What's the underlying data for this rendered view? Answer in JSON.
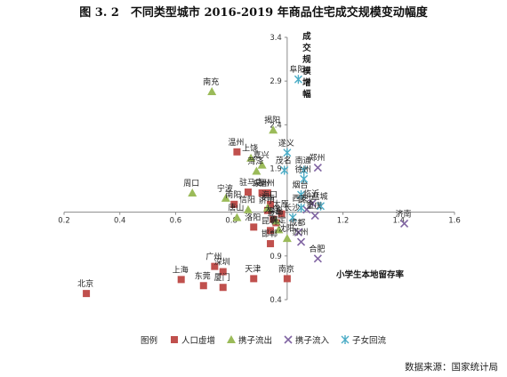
{
  "chart_data": {
    "type": "scatter",
    "title": "图 3. 2　不同类型城市 2016-2019 年商品住宅成交规模变动幅度",
    "xlabel": "小学生本地留存率",
    "ylabel": "成交规模增幅",
    "xlim": [
      0.2,
      1.6
    ],
    "ylim": [
      0.4,
      3.4
    ],
    "x_ticks": [
      "0.2",
      "0.4",
      "0.6",
      "0.8",
      "1",
      "1.2",
      "1.4",
      "1.6"
    ],
    "y_ticks": [
      "0.4",
      "0.9",
      "1.4",
      "1.9",
      "2.4",
      "2.9",
      "3.4"
    ],
    "x_cross": 1.0,
    "y_cross": 1.4,
    "grid": false,
    "legend_position": "bottom",
    "legend_title": "图例",
    "source": "数据来源：国家统计局",
    "series": [
      {
        "name": "人口虚增",
        "color": "#c0504d",
        "marker": "square",
        "points": [
          {
            "label": "北京",
            "x": 0.28,
            "y": 0.47
          },
          {
            "label": "上海",
            "x": 0.62,
            "y": 0.63
          },
          {
            "label": "东莞",
            "x": 0.7,
            "y": 0.56
          },
          {
            "label": "厦门",
            "x": 0.77,
            "y": 0.54
          },
          {
            "label": "深圳",
            "x": 0.77,
            "y": 0.72
          },
          {
            "label": "广州",
            "x": 0.74,
            "y": 0.78
          },
          {
            "label": "天津",
            "x": 0.88,
            "y": 0.64
          },
          {
            "label": "南京",
            "x": 1.0,
            "y": 0.64
          },
          {
            "label": "温州",
            "x": 0.82,
            "y": 2.09
          },
          {
            "label": "南阳",
            "x": 0.81,
            "y": 1.49
          },
          {
            "label": "驻马店",
            "x": 0.86,
            "y": 1.63
          },
          {
            "label": "泉州",
            "x": 0.91,
            "y": 1.62
          },
          {
            "label": "福州",
            "x": 0.93,
            "y": 1.62
          },
          {
            "label": "海口",
            "x": 0.94,
            "y": 1.49
          },
          {
            "label": "洛阳",
            "x": 0.88,
            "y": 1.23
          },
          {
            "label": "济宁",
            "x": 0.93,
            "y": 1.42
          },
          {
            "label": "大连",
            "x": 0.95,
            "y": 1.32
          },
          {
            "label": "金华",
            "x": 0.96,
            "y": 1.28
          },
          {
            "label": "太原",
            "x": 0.98,
            "y": 1.38
          },
          {
            "label": "昆明",
            "x": 0.94,
            "y": 1.19
          },
          {
            "label": "邯郸",
            "x": 0.94,
            "y": 1.04
          }
        ]
      },
      {
        "name": "携子流出",
        "color": "#9bbb59",
        "marker": "triangle",
        "points": [
          {
            "label": "南充",
            "x": 0.73,
            "y": 2.78
          },
          {
            "label": "揭阳",
            "x": 0.95,
            "y": 2.34
          },
          {
            "label": "上饶",
            "x": 0.87,
            "y": 2.02
          },
          {
            "label": "周口",
            "x": 0.66,
            "y": 1.62
          },
          {
            "label": "宁波",
            "x": 0.78,
            "y": 1.56
          },
          {
            "label": "菏泽",
            "x": 0.89,
            "y": 1.87
          },
          {
            "label": "嘉兴",
            "x": 0.91,
            "y": 1.94
          },
          {
            "label": "唐山",
            "x": 0.82,
            "y": 1.34
          },
          {
            "label": "信阳",
            "x": 0.86,
            "y": 1.43
          },
          {
            "label": "济南",
            "x": 0.93,
            "y": 1.45
          },
          {
            "label": "青岛",
            "x": 0.96,
            "y": 1.3
          },
          {
            "label": "沈阳",
            "x": 1.0,
            "y": 1.1
          },
          {
            "label": "保定",
            "x": 0.97,
            "y": 1.2
          }
        ]
      },
      {
        "name": "携子流入",
        "color": "#8064a2",
        "marker": "x",
        "points": [
          {
            "label": "郑州",
            "x": 1.11,
            "y": 1.91
          },
          {
            "label": "合肥",
            "x": 1.11,
            "y": 0.87
          },
          {
            "label": "济南",
            "x": 1.42,
            "y": 1.27
          },
          {
            "label": "武汉",
            "x": 1.07,
            "y": 1.43
          },
          {
            "label": "重庆",
            "x": 1.1,
            "y": 1.36
          },
          {
            "label": "成都",
            "x": 1.04,
            "y": 1.17
          },
          {
            "label": "临沂",
            "x": 1.09,
            "y": 1.5
          },
          {
            "label": "苏州",
            "x": 1.05,
            "y": 1.06
          }
        ]
      },
      {
        "name": "子女回流",
        "color": "#4bacc6",
        "marker": "star",
        "points": [
          {
            "label": "阜阳",
            "x": 1.04,
            "y": 2.92
          },
          {
            "label": "遂义",
            "x": 1.0,
            "y": 2.08
          },
          {
            "label": "南通",
            "x": 1.06,
            "y": 1.88
          },
          {
            "label": "徐州",
            "x": 1.06,
            "y": 1.78
          },
          {
            "label": "烟台",
            "x": 1.05,
            "y": 1.6
          },
          {
            "label": "西安",
            "x": 1.05,
            "y": 1.45
          },
          {
            "label": "盐城",
            "x": 1.12,
            "y": 1.47
          },
          {
            "label": "长沙",
            "x": 1.02,
            "y": 1.34
          },
          {
            "label": "茂名",
            "x": 0.99,
            "y": 1.88
          }
        ]
      }
    ]
  }
}
